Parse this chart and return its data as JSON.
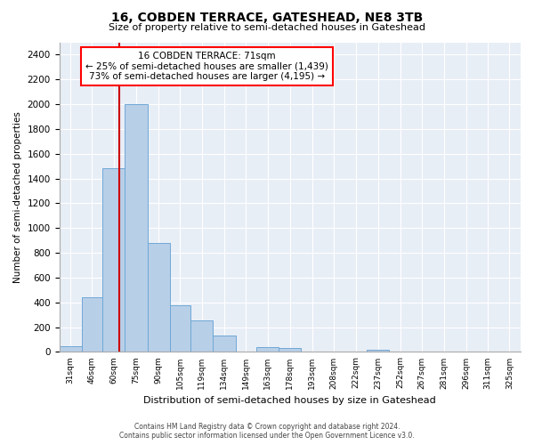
{
  "title": "16, COBDEN TERRACE, GATESHEAD, NE8 3TB",
  "subtitle": "Size of property relative to semi-detached houses in Gateshead",
  "xlabel": "Distribution of semi-detached houses by size in Gateshead",
  "ylabel": "Number of semi-detached properties",
  "bar_color": "#b8cfe8",
  "bar_edge_color": "#6fa8d6",
  "background_color": "#e8eef6",
  "grid_color": "#ffffff",
  "annotation_text": "16 COBDEN TERRACE: 71sqm\n← 25% of semi-detached houses are smaller (1,439)\n73% of semi-detached houses are larger (4,195) →",
  "property_line_color": "#cc0000",
  "categories": [
    "31sqm",
    "46sqm",
    "60sqm",
    "75sqm",
    "90sqm",
    "105sqm",
    "119sqm",
    "134sqm",
    "149sqm",
    "163sqm",
    "178sqm",
    "193sqm",
    "208sqm",
    "222sqm",
    "237sqm",
    "252sqm",
    "267sqm",
    "281sqm",
    "296sqm",
    "311sqm",
    "325sqm"
  ],
  "bin_starts": [
    31,
    46,
    60,
    75,
    90,
    105,
    119,
    134,
    149,
    163,
    178,
    193,
    208,
    222,
    237,
    252,
    267,
    281,
    296,
    311,
    325
  ],
  "bin_widths": [
    15,
    14,
    15,
    15,
    15,
    14,
    15,
    15,
    14,
    15,
    15,
    15,
    14,
    15,
    15,
    15,
    14,
    15,
    15,
    14,
    15
  ],
  "values": [
    45,
    440,
    1480,
    2000,
    880,
    375,
    255,
    130,
    0,
    40,
    30,
    0,
    0,
    0,
    20,
    0,
    0,
    0,
    0,
    0,
    0
  ],
  "ylim": [
    0,
    2500
  ],
  "yticks": [
    0,
    200,
    400,
    600,
    800,
    1000,
    1200,
    1400,
    1600,
    1800,
    2000,
    2200,
    2400
  ],
  "property_size": 71,
  "footer1": "Contains HM Land Registry data © Crown copyright and database right 2024.",
  "footer2": "Contains public sector information licensed under the Open Government Licence v3.0."
}
